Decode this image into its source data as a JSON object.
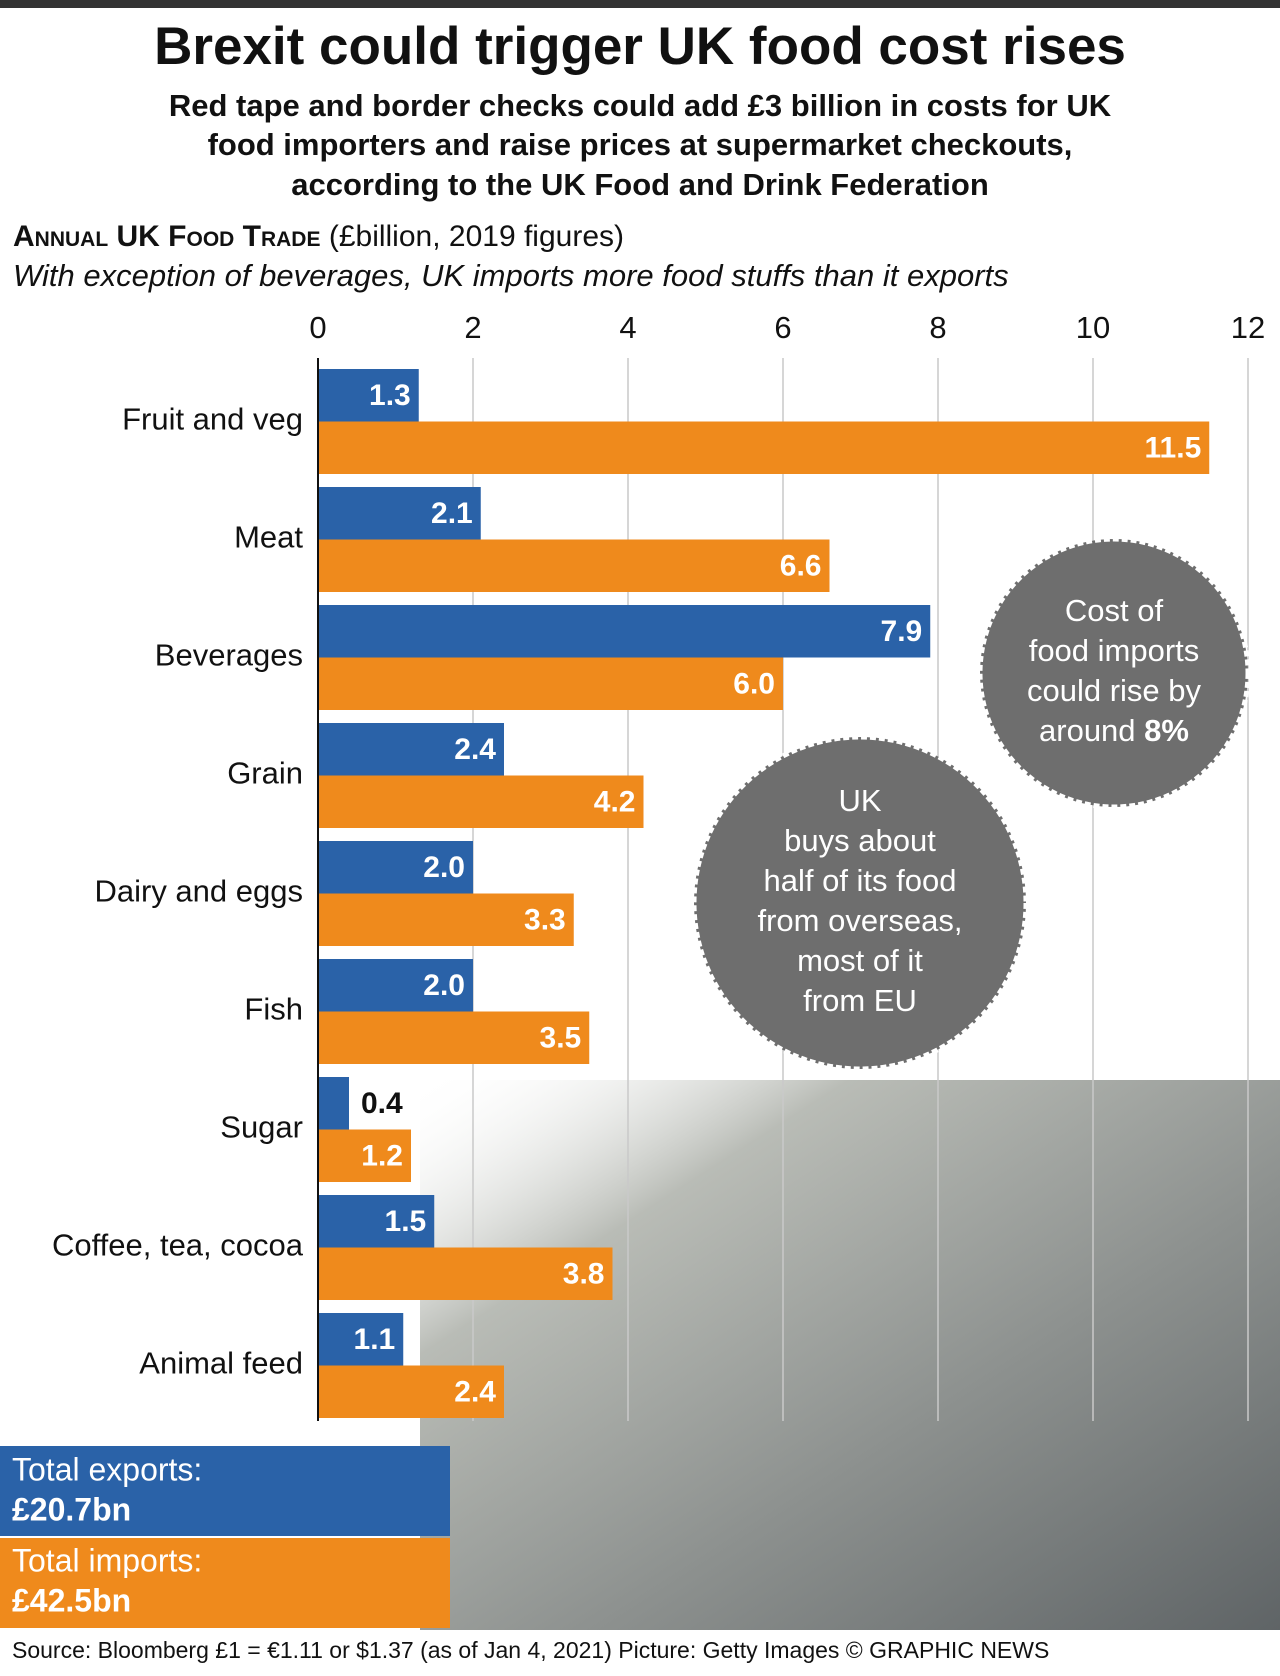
{
  "chart_data": {
    "type": "bar",
    "orientation": "horizontal",
    "title": "Brexit could trigger UK food cost rises",
    "subtitle": [
      "Red tape and border checks could add £3 billion in costs for UK",
      "food importers and raise prices at supermarket checkouts,",
      "according to the UK Food and Drink Federation"
    ],
    "section_title": "Annual UK Food Trade",
    "section_units": "(£billion, 2019 figures)",
    "note": "With exception of beverages, UK imports more food stuffs than it exports",
    "categories": [
      "Fruit and veg",
      "Meat",
      "Beverages",
      "Grain",
      "Dairy and eggs",
      "Fish",
      "Sugar",
      "Coffee, tea, cocoa",
      "Animal feed"
    ],
    "series": [
      {
        "color": "#2a62a8",
        "values": [
          1.3,
          2.1,
          7.9,
          2.4,
          2.0,
          2.0,
          0.4,
          1.5,
          1.1
        ],
        "value_labels": [
          "1.3",
          "2.1",
          "7.9",
          "2.4",
          "2.0",
          "2.0",
          "0.4",
          "1.5",
          "1.1"
        ]
      },
      {
        "color": "#ef8a1c",
        "values": [
          11.5,
          6.6,
          6.0,
          4.2,
          3.3,
          3.5,
          1.2,
          3.8,
          2.4
        ],
        "value_labels": [
          "11.5",
          "6.6",
          "6.0",
          "4.2",
          "3.3",
          "3.5",
          "1.2",
          "3.8",
          "2.4"
        ]
      }
    ],
    "xlim": [
      0,
      12
    ],
    "xticks": [
      0,
      2,
      4,
      6,
      8,
      10,
      12
    ],
    "grid": true,
    "annotations": [
      {
        "lines": [
          "Cost of",
          "food imports",
          "could rise by",
          "around"
        ],
        "emphasis": "8%"
      },
      {
        "lines": [
          "UK",
          "buys about",
          "half of its food",
          "from overseas,",
          "most of it",
          "from EU"
        ]
      }
    ],
    "totals": [
      {
        "label": "Total exports:",
        "value": "£20.7bn"
      },
      {
        "label": "Total imports:",
        "value": "£42.5bn"
      }
    ],
    "source": "Source: Bloomberg £1 = €1.11 or $1.37 (as of Jan 4, 2021) Picture: Getty Images © GRAPHIC NEWS"
  }
}
